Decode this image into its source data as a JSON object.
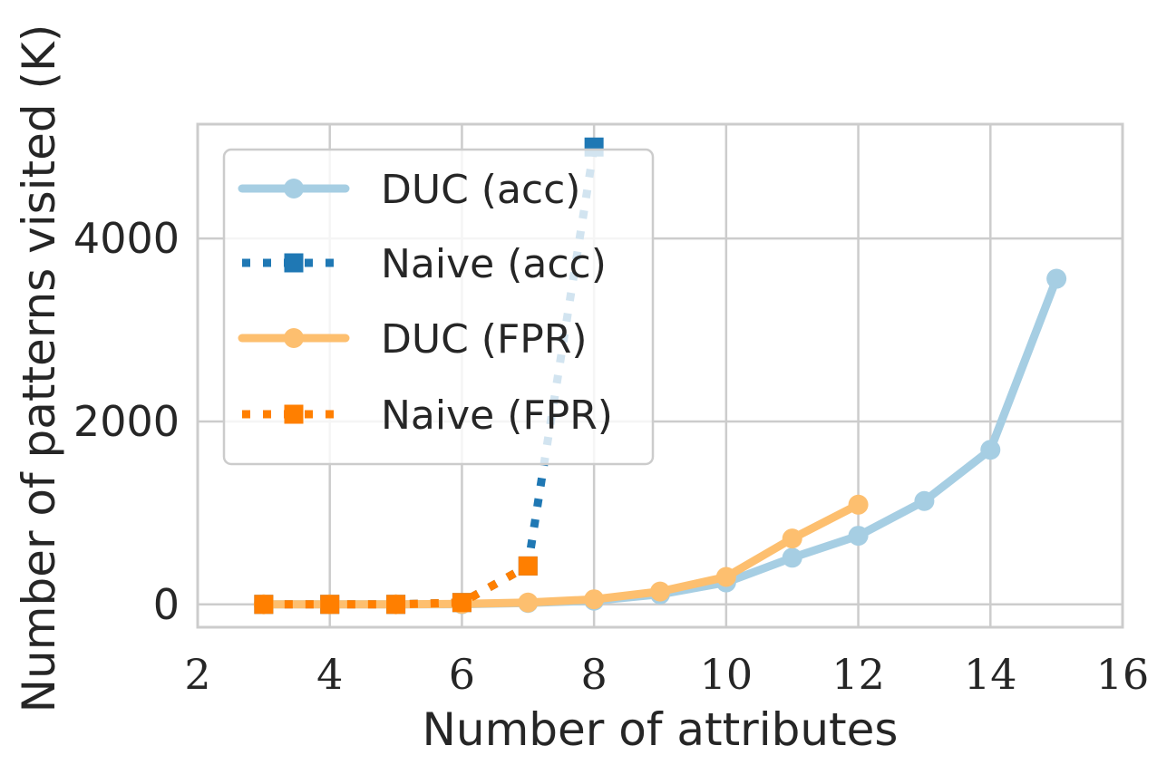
{
  "chart_data": {
    "type": "line",
    "xlabel": "Number of attributes",
    "ylabel": "Number of patterns visited (K)",
    "xlim": [
      2,
      16
    ],
    "ylim": [
      -250,
      5250
    ],
    "xticks": [
      "2",
      "4",
      "6",
      "8",
      "10",
      "12",
      "14",
      "16"
    ],
    "yticks": [
      "0",
      "2000",
      "4000"
    ],
    "grid": true,
    "legend_position": "top-left",
    "series": [
      {
        "name": "DUC (acc)",
        "color": "#a6cee3",
        "style": "solid",
        "marker": "circle",
        "x": [
          3,
          4,
          5,
          6,
          7,
          8,
          9,
          10,
          11,
          12,
          13,
          14,
          15
        ],
        "y": [
          0,
          0,
          0,
          2,
          15,
          40,
          110,
          240,
          510,
          750,
          1130,
          1690,
          3560
        ]
      },
      {
        "name": "Naive (acc)",
        "color": "#1f78b4",
        "style": "dotted",
        "marker": "square",
        "x": [
          3,
          4,
          5,
          6,
          7,
          8
        ],
        "y": [
          0,
          0,
          0,
          20,
          420,
          5000
        ]
      },
      {
        "name": "DUC (FPR)",
        "color": "#fdbf6f",
        "style": "solid",
        "marker": "circle",
        "x": [
          3,
          4,
          5,
          6,
          7,
          8,
          9,
          10,
          11,
          12
        ],
        "y": [
          0,
          0,
          0,
          5,
          20,
          55,
          140,
          300,
          720,
          1090
        ]
      },
      {
        "name": "Naive (FPR)",
        "color": "#ff7f00",
        "style": "dotted",
        "marker": "square",
        "x": [
          3,
          4,
          5,
          6,
          7
        ],
        "y": [
          0,
          0,
          0,
          20,
          420
        ]
      }
    ]
  }
}
